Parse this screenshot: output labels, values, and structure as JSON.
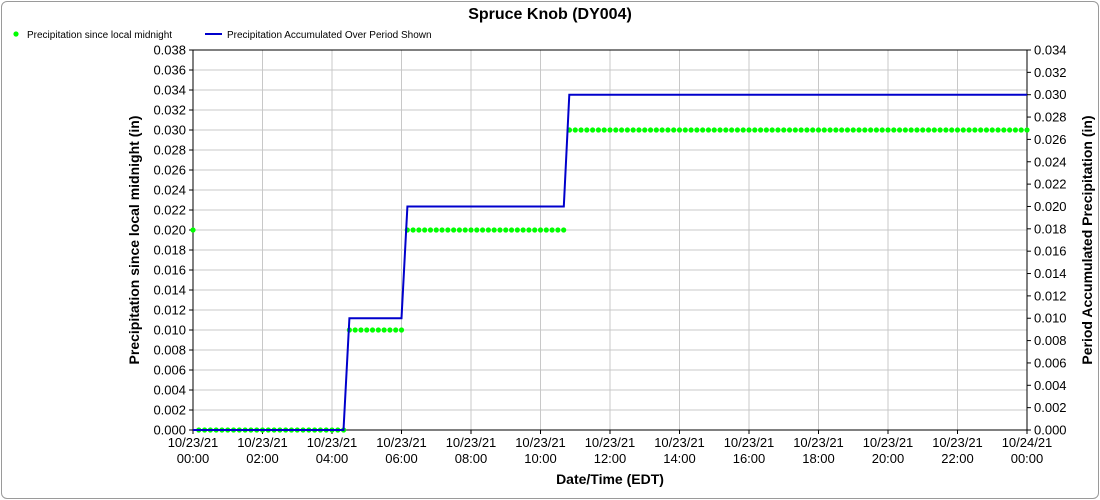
{
  "chart_data": {
    "type": "line",
    "title": "Spruce Knob (DY004)",
    "xlabel": "Date/Time (EDT)",
    "ylabel_left": "Precipitation since local midnight (in)",
    "ylabel_right": "Period Accumulated Precipitation (in)",
    "grid": true,
    "legend_placement": "top-left",
    "x_ticks": [
      {
        "hour": 0,
        "date": "10/23/21",
        "time": "00:00"
      },
      {
        "hour": 2,
        "date": "10/23/21",
        "time": "02:00"
      },
      {
        "hour": 4,
        "date": "10/23/21",
        "time": "04:00"
      },
      {
        "hour": 6,
        "date": "10/23/21",
        "time": "06:00"
      },
      {
        "hour": 8,
        "date": "10/23/21",
        "time": "08:00"
      },
      {
        "hour": 10,
        "date": "10/23/21",
        "time": "10:00"
      },
      {
        "hour": 12,
        "date": "10/23/21",
        "time": "12:00"
      },
      {
        "hour": 14,
        "date": "10/23/21",
        "time": "14:00"
      },
      {
        "hour": 16,
        "date": "10/23/21",
        "time": "16:00"
      },
      {
        "hour": 18,
        "date": "10/23/21",
        "time": "18:00"
      },
      {
        "hour": 20,
        "date": "10/23/21",
        "time": "20:00"
      },
      {
        "hour": 22,
        "date": "10/23/21",
        "time": "22:00"
      },
      {
        "hour": 24,
        "date": "10/24/21",
        "time": "00:00"
      }
    ],
    "xlim": [
      0,
      24
    ],
    "ylim_left": [
      0,
      0.038
    ],
    "ylim_right": [
      0,
      0.034
    ],
    "y_ticks_left": [
      "0.000",
      "0.002",
      "0.004",
      "0.006",
      "0.008",
      "0.010",
      "0.012",
      "0.014",
      "0.016",
      "0.018",
      "0.020",
      "0.022",
      "0.024",
      "0.026",
      "0.028",
      "0.030",
      "0.032",
      "0.034",
      "0.036",
      "0.038"
    ],
    "y_ticks_right": [
      "0.000",
      "0.002",
      "0.004",
      "0.006",
      "0.008",
      "0.010",
      "0.012",
      "0.014",
      "0.016",
      "0.018",
      "0.020",
      "0.022",
      "0.024",
      "0.026",
      "0.028",
      "0.030",
      "0.032",
      "0.034"
    ],
    "series": [
      {
        "name": "Precipitation since local midnight",
        "axis": "left",
        "style": "dots",
        "color": "#00ff00",
        "interval_minutes": 10,
        "steps": [
          {
            "from_hour": 0,
            "to_hour": 0,
            "value": 0.02
          },
          {
            "from_hour": 0.1667,
            "to_hour": 4.3333,
            "value": 0.0
          },
          {
            "from_hour": 4.5,
            "to_hour": 6.0,
            "value": 0.01
          },
          {
            "from_hour": 6.1667,
            "to_hour": 10.6667,
            "value": 0.02
          },
          {
            "from_hour": 10.8333,
            "to_hour": 24.0,
            "value": 0.03
          }
        ]
      },
      {
        "name": "Precipitation Accumulated Over Period Shown",
        "axis": "right",
        "style": "line",
        "color": "#0000cc",
        "x": [
          0,
          4.33,
          4.5,
          6.0,
          6.17,
          10.67,
          10.83,
          24.0
        ],
        "y": [
          0.0,
          0.0,
          0.01,
          0.01,
          0.02,
          0.02,
          0.03,
          0.03
        ]
      }
    ]
  }
}
